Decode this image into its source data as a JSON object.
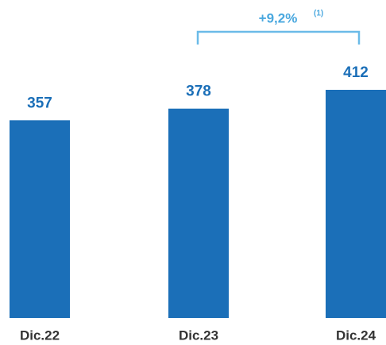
{
  "chart_data": {
    "type": "bar",
    "categories": [
      "Dic.22",
      "Dic.23",
      "Dic.24"
    ],
    "values": [
      357,
      378,
      412
    ],
    "color": "#1b6fb8",
    "annotation": "+9,2%",
    "annotation_note": "(1)"
  }
}
